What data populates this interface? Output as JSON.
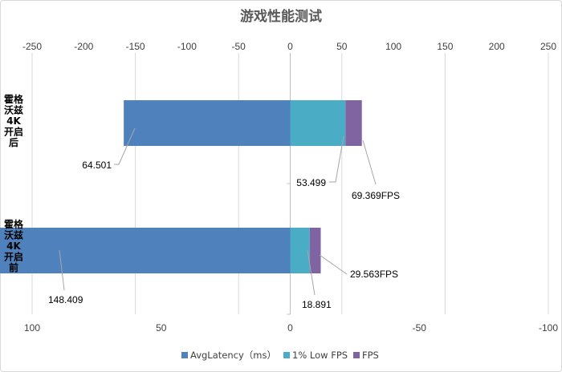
{
  "chart_data": {
    "type": "bar",
    "orientation": "horizontal",
    "stacked": true,
    "title": "游戏性能测试",
    "categories": [
      "霍格沃兹4K开启后",
      "霍格沃兹4K开启前"
    ],
    "category_label_lines": [
      [
        "霍格",
        "沃兹",
        "4K",
        "开启",
        "后"
      ],
      [
        "霍格",
        "沃兹",
        "4K",
        "开启",
        "前"
      ]
    ],
    "series": [
      {
        "name": "AvgLatency（ms）",
        "axis": "secondary",
        "values": [
          64.501,
          148.409
        ],
        "labels": [
          "64.501",
          "148.409"
        ],
        "color": "#4f81bd"
      },
      {
        "name": "1% Low FPS",
        "axis": "primary",
        "values": [
          53.499,
          18.891
        ],
        "labels": [
          "53.499",
          "18.891"
        ],
        "color": "#4bacc6"
      },
      {
        "name": "FPS",
        "axis": "primary",
        "values": [
          69.369,
          29.563
        ],
        "labels": [
          "69.369FPS",
          "29.563FPS"
        ],
        "color": "#8064a2"
      }
    ],
    "primary_axis": {
      "position": "top",
      "range": [
        -250,
        250
      ],
      "ticks": [
        "-250",
        "-200",
        "-150",
        "-100",
        "-50",
        "0",
        "50",
        "100",
        "150",
        "200",
        "250"
      ]
    },
    "secondary_axis": {
      "position": "bottom",
      "reversed": true,
      "range": [
        -100,
        100
      ],
      "ticks": [
        "100",
        "50",
        "0",
        "-50",
        "-100"
      ]
    },
    "grid": true,
    "legend": "bottom"
  }
}
